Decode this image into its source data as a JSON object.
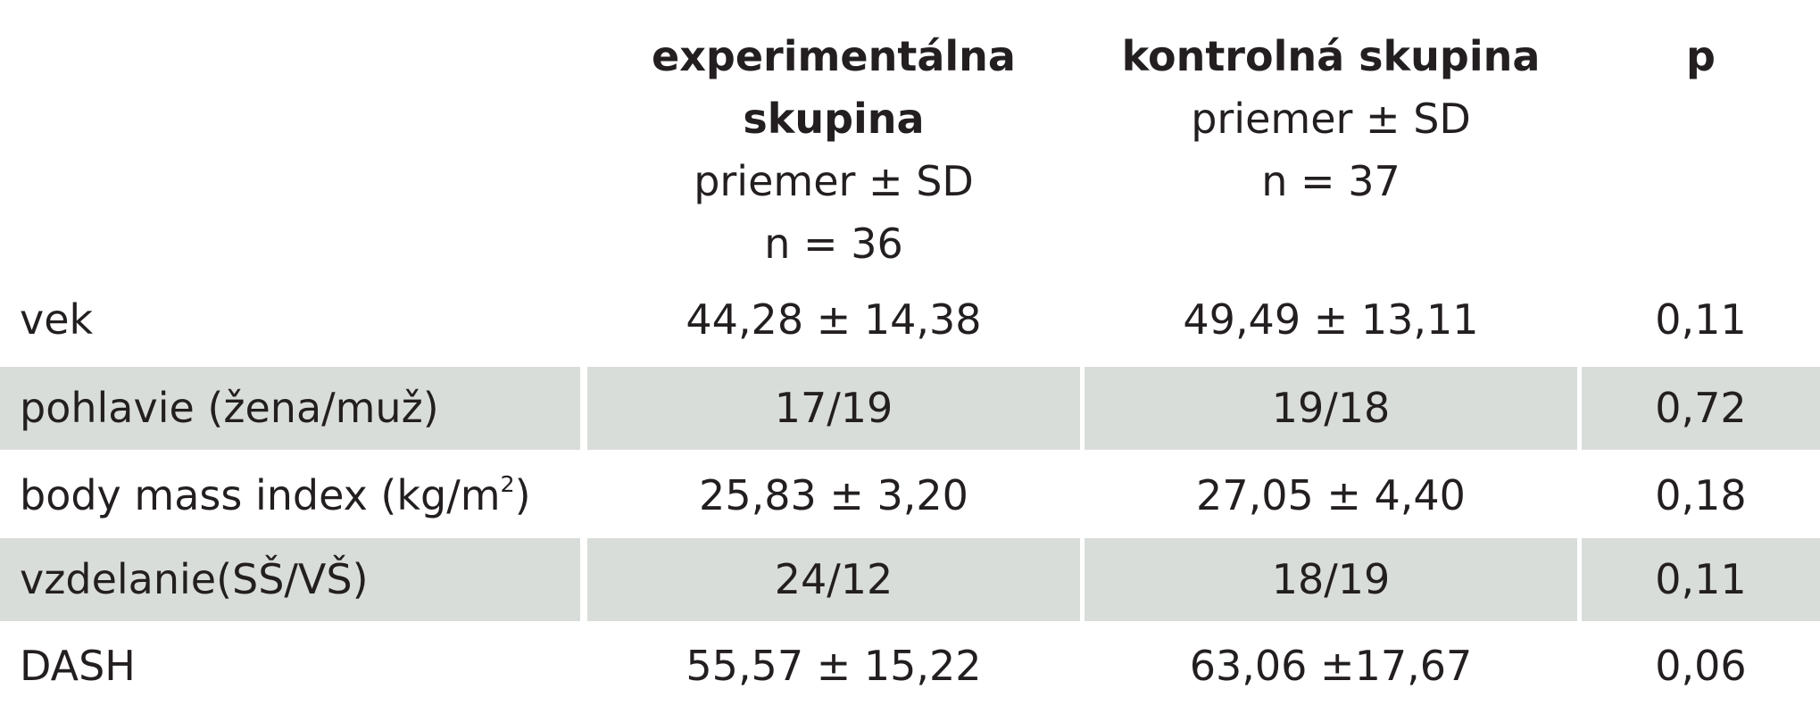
{
  "header": {
    "experimental": {
      "title_line1": "experimentálna",
      "title_line2": "skupina",
      "stat": "priemer ± SD",
      "n": "n = 36"
    },
    "control": {
      "title": "kontrolná skupina",
      "stat": "priemer ± SD",
      "n": "n = 37"
    },
    "p": "p"
  },
  "rows": [
    {
      "label": "vek",
      "label_sup": "",
      "label_end": "",
      "experimental": "44,28 ± 14,38",
      "control": "49,49 ± 13,11",
      "p": "0,11",
      "shaded": false
    },
    {
      "label": "pohlavie (žena/muž)",
      "label_sup": "",
      "label_end": "",
      "experimental": "17/19",
      "control": "19/18",
      "p": "0,72",
      "shaded": true
    },
    {
      "label": "body mass index (kg/m",
      "label_sup": "2",
      "label_end": ")",
      "experimental": "25,83 ± 3,20",
      "control": "27,05 ± 4,40",
      "p": "0,18",
      "shaded": false
    },
    {
      "label": "vzdelanie(SŠ/VŠ)",
      "label_sup": "",
      "label_end": "",
      "experimental": "24/12",
      "control": "18/19",
      "p": "0,11",
      "shaded": true
    },
    {
      "label": "DASH",
      "label_sup": "",
      "label_end": "",
      "experimental": "55,57 ± 15,22",
      "control": "63,06 ±17,67",
      "p": "0,06",
      "shaded": false
    }
  ],
  "colors": {
    "shade": "#d9ddd9",
    "text": "#231f20"
  }
}
